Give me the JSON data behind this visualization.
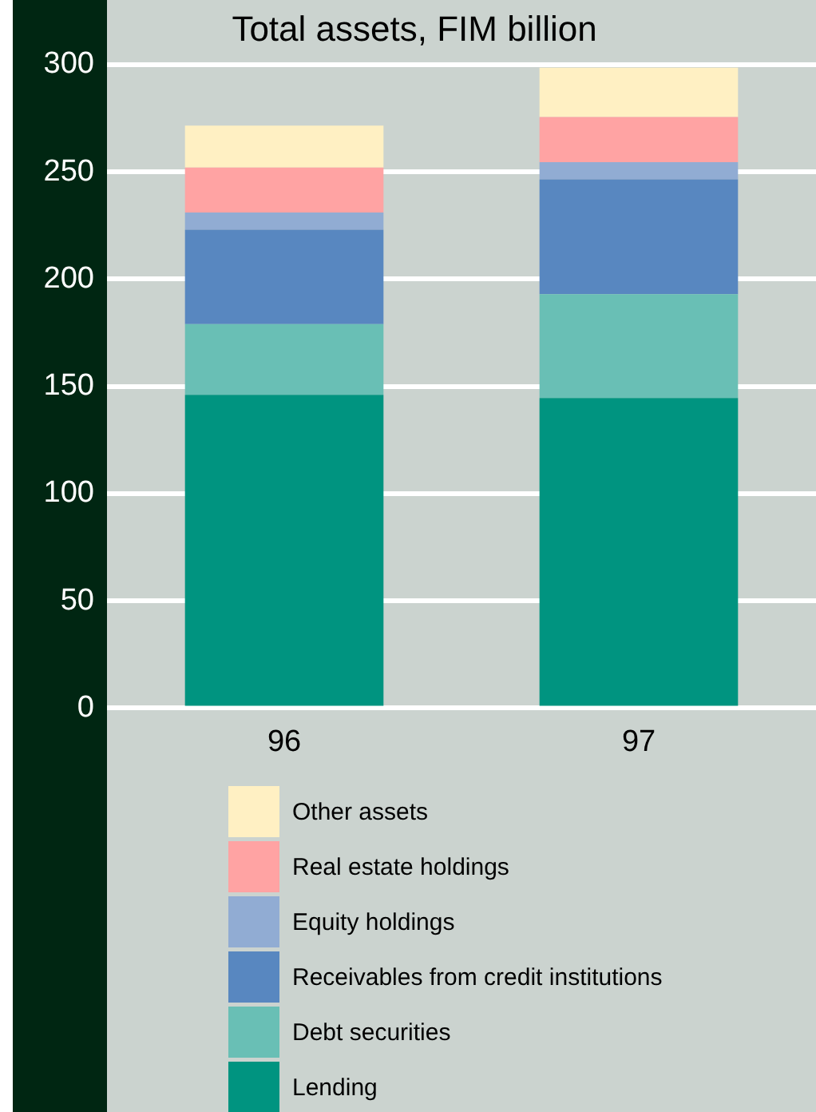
{
  "chart_data": {
    "type": "bar",
    "title": "Total assets, FIM billion",
    "stacked": true,
    "categories": [
      "96",
      "97"
    ],
    "series": [
      {
        "name": "Lending",
        "color": "#009480",
        "values": [
          146,
          144.5
        ]
      },
      {
        "name": "Debt securities",
        "color": "#69bfb5",
        "values": [
          33,
          48.5
        ]
      },
      {
        "name": "Receivables from credit institutions",
        "color": "#5887c0",
        "values": [
          44,
          53.5
        ]
      },
      {
        "name": "Equity holdings",
        "color": "#91acd3",
        "values": [
          8,
          8
        ]
      },
      {
        "name": "Real estate holdings",
        "color": "#ffa3a3",
        "values": [
          21,
          21
        ]
      },
      {
        "name": "Other assets",
        "color": "#fff0c3",
        "values": [
          19.5,
          23
        ]
      }
    ],
    "ylim": [
      0,
      300
    ],
    "yticks": [
      0,
      50,
      100,
      150,
      200,
      250,
      300
    ],
    "grid": "y",
    "legend": "bottom"
  }
}
